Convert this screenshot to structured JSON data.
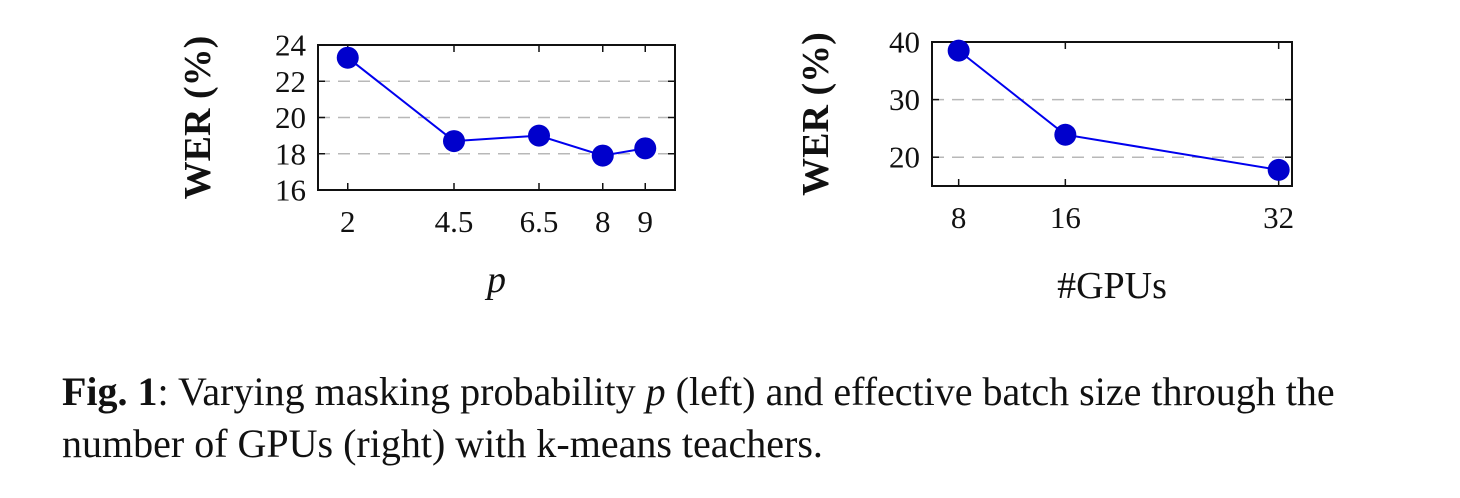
{
  "chart_data": [
    {
      "type": "line",
      "xlabel": "p",
      "ylabel": "WER (%)",
      "x": [
        2,
        4.5,
        6.5,
        8,
        9
      ],
      "xticks": [
        "2",
        "4.5",
        "6.5",
        "8",
        "9"
      ],
      "series": [
        {
          "values": [
            23.3,
            18.7,
            19.0,
            17.9,
            18.3
          ]
        }
      ],
      "yticks": [
        "16",
        "18",
        "20",
        "22",
        "24"
      ],
      "ylim": [
        16,
        24
      ],
      "xlim": [
        1.3,
        9.7
      ],
      "grid": "horizontal dashed",
      "color": "#0000cc"
    },
    {
      "type": "line",
      "xlabel": "#GPUs",
      "ylabel": "WER (%)",
      "x": [
        8,
        16,
        32
      ],
      "xticks": [
        "8",
        "16",
        "32"
      ],
      "series": [
        {
          "values": [
            38.5,
            23.9,
            17.8
          ]
        }
      ],
      "yticks": [
        "20",
        "30",
        "40"
      ],
      "ylim": [
        15,
        40
      ],
      "xlim": [
        6,
        33
      ],
      "grid": "horizontal dashed",
      "color": "#0000cc"
    }
  ],
  "caption": {
    "label": "Fig. 1",
    "colon": ":",
    "text_before": " Varying masking probability ",
    "p": "p",
    "text_after": " (left) and effective batch size through the number of GPUs (right) with k-means teachers."
  }
}
